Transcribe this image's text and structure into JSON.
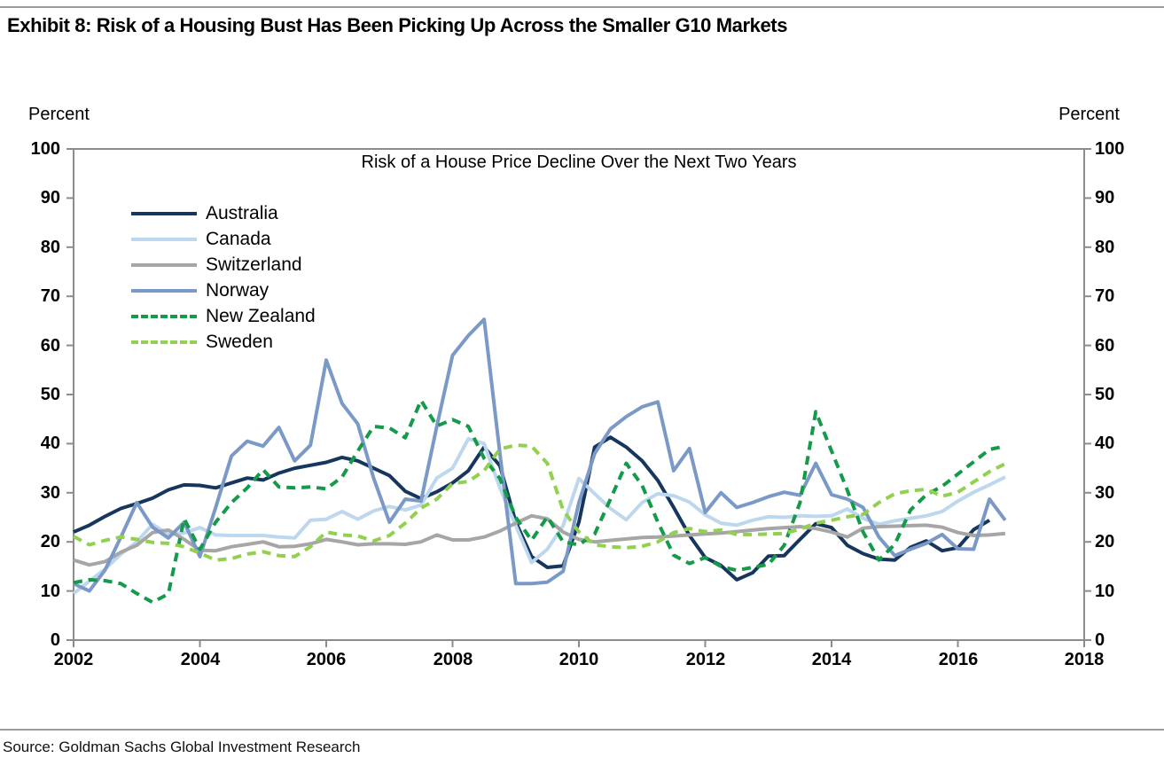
{
  "page": {
    "title": "Exhibit 8: Risk of a Housing Bust Has Been Picking Up Across the Smaller G10 Markets",
    "source": "Source: Goldman Sachs Global Investment Research"
  },
  "chart_data": {
    "type": "line",
    "title": "Risk of a House Price Decline Over the Next Two Years",
    "xlabel": "",
    "ylabel": "Percent",
    "grid": false,
    "legend_position": "inside-top-left",
    "y_axis": {
      "label_left": "Percent",
      "label_right": "Percent",
      "min": 0,
      "max": 100,
      "ticks": [
        0,
        10,
        20,
        30,
        40,
        50,
        60,
        70,
        80,
        90,
        100
      ]
    },
    "x_axis": {
      "min": 2002,
      "max": 2018,
      "ticks": [
        2002,
        2004,
        2006,
        2008,
        2010,
        2012,
        2014,
        2016,
        2018
      ]
    },
    "x_start": 2002,
    "x_step": 0.25,
    "axis_color": "#8c8c8c",
    "series": [
      {
        "name": "Australia",
        "color": "#17365d",
        "dash": false,
        "values": [
          22.0,
          23.4,
          25.2,
          26.8,
          27.8,
          28.9,
          30.6,
          31.6,
          31.5,
          31.0,
          32.0,
          33.0,
          32.6,
          34.0,
          35.0,
          35.6,
          36.2,
          37.2,
          36.5,
          35.0,
          33.5,
          30.3,
          28.8,
          30.2,
          32.0,
          34.5,
          39.3,
          35.5,
          24.0,
          17.0,
          14.8,
          15.1,
          24.0,
          39.3,
          41.3,
          39.3,
          36.5,
          32.5,
          27.0,
          21.3,
          16.8,
          15.2,
          12.3,
          13.7,
          17.1,
          17.2,
          20.5,
          23.7,
          22.9,
          19.3,
          17.6,
          16.5,
          16.3,
          18.9,
          20.2,
          18.2,
          18.8,
          22.5,
          24.4
        ]
      },
      {
        "name": "Canada",
        "color": "#bdd7ee",
        "dash": false,
        "values": [
          9.5,
          12.0,
          14.5,
          17.5,
          20.0,
          23.6,
          21.5,
          21.8,
          22.9,
          21.4,
          21.3,
          21.3,
          21.3,
          21.0,
          20.8,
          24.4,
          24.6,
          26.2,
          24.6,
          26.3,
          27.2,
          26.5,
          27.5,
          33.0,
          35.0,
          41.0,
          40.0,
          31.0,
          23.3,
          15.8,
          18.5,
          23.3,
          32.9,
          29.8,
          26.8,
          24.5,
          28.0,
          29.8,
          29.4,
          28.1,
          25.5,
          23.8,
          23.4,
          24.4,
          25.1,
          25.0,
          25.3,
          25.2,
          25.3,
          26.7,
          24.8,
          23.6,
          24.3,
          24.8,
          25.3,
          26.2,
          28.3,
          30.1,
          31.6,
          33.2
        ]
      },
      {
        "name": "Switzerland",
        "color": "#a6a6a6",
        "dash": false,
        "values": [
          16.3,
          15.3,
          16.0,
          17.9,
          19.3,
          21.9,
          22.4,
          20.5,
          18.3,
          18.2,
          19.0,
          19.5,
          20.0,
          19.0,
          19.1,
          19.6,
          20.5,
          20.0,
          19.4,
          19.6,
          19.6,
          19.5,
          20.0,
          21.4,
          20.4,
          20.4,
          21.0,
          22.2,
          23.8,
          25.3,
          24.7,
          22.0,
          20.5,
          20.0,
          20.3,
          20.6,
          20.9,
          21.0,
          21.2,
          21.4,
          21.6,
          21.8,
          22.1,
          22.4,
          22.7,
          22.9,
          23.1,
          22.7,
          22.0,
          21.0,
          22.8,
          23.1,
          23.2,
          23.3,
          23.4,
          23.0,
          21.9,
          21.3,
          21.4,
          21.7
        ]
      },
      {
        "name": "Norway",
        "color": "#7b99c6",
        "dash": false,
        "values": [
          11.5,
          10.0,
          14.3,
          21.0,
          28.0,
          23.0,
          20.8,
          24.0,
          17.0,
          27.0,
          37.5,
          40.5,
          39.5,
          43.3,
          36.5,
          39.7,
          57.0,
          48.2,
          44.0,
          33.0,
          24.0,
          28.7,
          28.3,
          43.5,
          58.0,
          62.0,
          65.3,
          38.0,
          11.5,
          11.5,
          11.8,
          14.0,
          28.0,
          38.0,
          43.0,
          45.5,
          47.5,
          48.5,
          34.5,
          39.0,
          26.0,
          30.0,
          27.0,
          28.0,
          29.2,
          30.1,
          29.5,
          36.0,
          29.6,
          28.7,
          27.0,
          21.0,
          17.2,
          18.5,
          19.7,
          21.5,
          18.6,
          18.5,
          28.7,
          24.4
        ]
      },
      {
        "name": "New Zealand",
        "color": "#149a49",
        "dash": true,
        "values": [
          11.7,
          12.3,
          12.1,
          11.5,
          9.5,
          7.7,
          9.4,
          24.7,
          18.5,
          24.0,
          28.0,
          31.0,
          34.7,
          31.2,
          31.0,
          31.2,
          30.8,
          33.2,
          38.5,
          43.5,
          43.2,
          41.2,
          48.8,
          43.6,
          44.9,
          43.5,
          37.0,
          32.9,
          25.0,
          20.3,
          25.1,
          20.0,
          19.4,
          21.6,
          28.7,
          36.0,
          31.5,
          24.0,
          17.3,
          15.6,
          16.8,
          15.0,
          14.2,
          14.8,
          15.4,
          19.3,
          28.0,
          46.5,
          38.5,
          30.5,
          22.0,
          16.3,
          19.5,
          26.5,
          29.6,
          31.3,
          33.8,
          36.3,
          38.8,
          39.5
        ]
      },
      {
        "name": "Sweden",
        "color": "#92d050",
        "dash": true,
        "values": [
          21.1,
          19.4,
          20.3,
          21.0,
          20.5,
          19.9,
          19.7,
          19.0,
          17.7,
          16.3,
          16.6,
          17.5,
          18.0,
          17.2,
          17.0,
          19.0,
          22.0,
          21.4,
          21.2,
          20.2,
          21.3,
          23.8,
          26.9,
          28.7,
          31.9,
          32.3,
          34.5,
          38.9,
          39.7,
          39.5,
          36.0,
          26.5,
          22.0,
          19.4,
          19.0,
          18.8,
          19.1,
          20.0,
          21.9,
          22.7,
          22.1,
          22.4,
          21.5,
          21.5,
          21.6,
          21.7,
          22.6,
          23.8,
          24.4,
          25.1,
          25.6,
          28.0,
          29.8,
          30.4,
          30.7,
          29.3,
          30.1,
          32.2,
          34.3,
          35.9
        ]
      }
    ]
  }
}
